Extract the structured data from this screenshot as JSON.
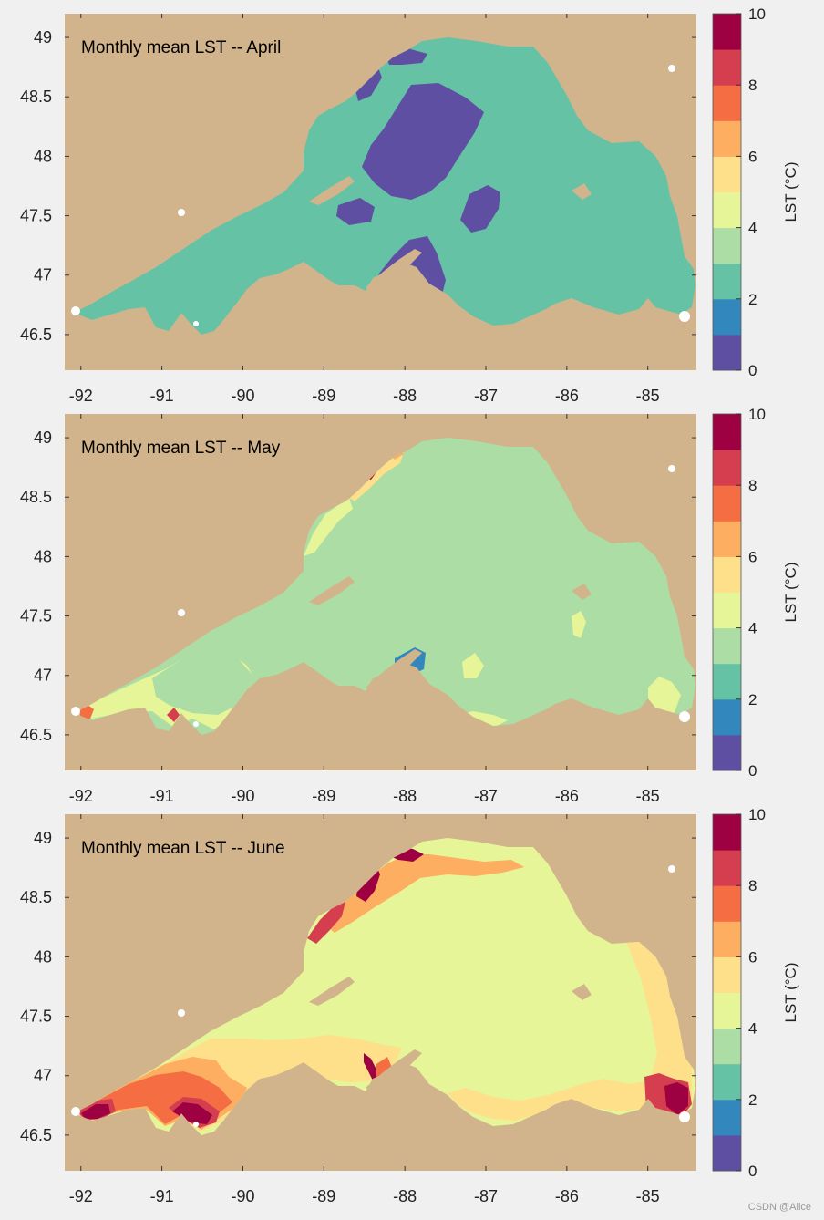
{
  "figure": {
    "background_color": "#f0f0f0",
    "map_background_color": "#d2b48c",
    "lake": "Lake Superior"
  },
  "colorbar": {
    "label": "LST (°C)",
    "range": [
      0,
      10
    ],
    "tick_labels": [
      "0",
      "2",
      "4",
      "6",
      "8",
      "10"
    ],
    "colors": [
      "#5e4fa2",
      "#3288bd",
      "#66c2a5",
      "#abdda4",
      "#e6f598",
      "#fee08b",
      "#fdae61",
      "#f46d43",
      "#d53e4f",
      "#9e0142"
    ]
  },
  "axes": {
    "x_tick_labels": [
      "-92",
      "-91",
      "-90",
      "-89",
      "-88",
      "-87",
      "-86",
      "-85"
    ],
    "y_tick_labels": [
      "46.5",
      "47",
      "47.5",
      "48",
      "48.5",
      "49"
    ],
    "x_range": [
      -92.2,
      -84.4
    ],
    "y_range": [
      46.2,
      49.2
    ]
  },
  "panels": [
    {
      "title": "Monthly mean LST -- April",
      "base_level": 2,
      "dominant_color": "#3288bd"
    },
    {
      "title": "Monthly mean LST -- May",
      "base_level": 3,
      "dominant_color": "#66c2a5"
    },
    {
      "title": "Monthly mean LST -- June",
      "base_level": 4,
      "dominant_color": "#abdda4"
    }
  ],
  "watermark": "CSDN @Alice"
}
